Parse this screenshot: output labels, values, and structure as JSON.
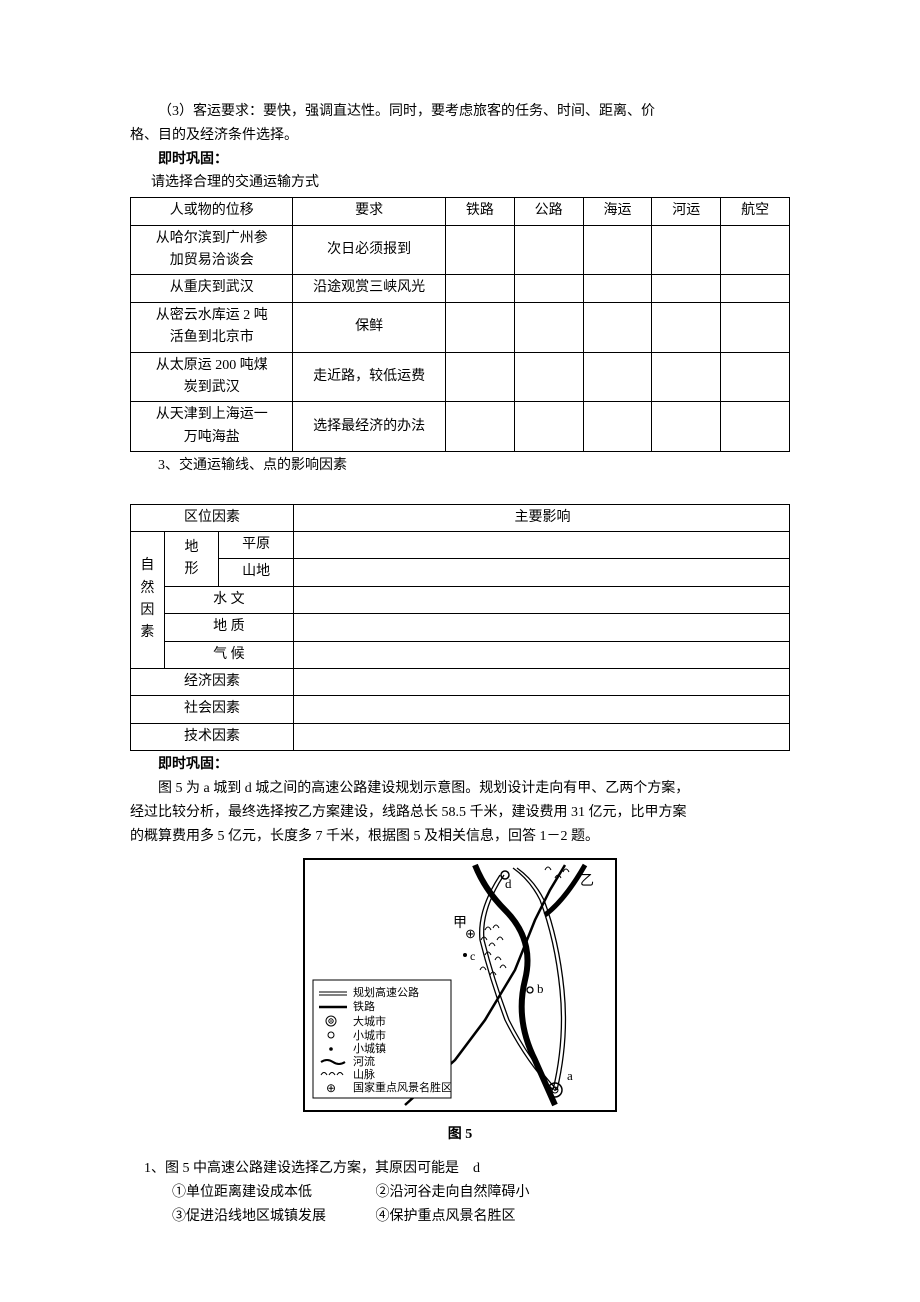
{
  "intro": {
    "line1": "（3）客运要求：要快，强调直达性。同时，要考虑旅客的任务、时间、距离、价",
    "line2": "格、目的及经济条件选择。",
    "consolidate_label": "即时巩固：",
    "prompt": "请选择合理的交通运输方式"
  },
  "table1": {
    "headers": [
      "人或物的位移",
      "要求",
      "铁路",
      "公路",
      "海运",
      "河运",
      "航空"
    ],
    "rows": [
      {
        "c0a": "从哈尔滨到广州参",
        "c0b": "加贸易洽谈会",
        "c1": "次日必须报到"
      },
      {
        "c0": "从重庆到武汉",
        "c1": "沿途观赏三峡风光"
      },
      {
        "c0a": "从密云水库运 2 吨",
        "c0b": "活鱼到北京市",
        "c1": "保鲜"
      },
      {
        "c0a": "从太原运 200 吨煤",
        "c0b": "炭到武汉",
        "c1": "走近路，较低运费"
      },
      {
        "c0a": "从天津到上海运一",
        "c0b": "万吨海盐",
        "c1": "选择最经济的办法"
      }
    ]
  },
  "section3": "3、交通运输线、点的影响因素",
  "table2": {
    "header_factor": "区位因素",
    "header_effect": "主要影响",
    "natural_label": "自然因素",
    "terrain": "地形",
    "plain": "平原",
    "mountain": "山地",
    "hydrology": "水 文",
    "geology": "地 质",
    "climate": "气 候",
    "econ": "经济因素",
    "social": "社会因素",
    "tech": "技术因素"
  },
  "consolidate2": "即时巩固：",
  "scenario": {
    "l1": "图 5 为 a 城到 d 城之间的高速公路建设规划示意图。规划设计走向有甲、乙两个方案，",
    "l2": "经过比较分析，最终选择按乙方案建设，线路总长 58.5 千米，建设费用 31 亿元，比甲方案",
    "l3": "的概算费用多 5 亿元，长度多 7 千米，根据图 5 及相关信息，回答 1－2 题。"
  },
  "figure": {
    "caption": "图 5",
    "legend": {
      "l1": "规划高速公路",
      "l2": "铁路",
      "l3": "大城市",
      "l4": "小城市",
      "l5": "小城镇",
      "l6": "河流",
      "l7": "山脉",
      "l8": "国家重点风景名胜区"
    },
    "labels": {
      "jia": "甲",
      "yi": "乙",
      "a": "a",
      "b": "b",
      "c": "c",
      "d": "d",
      "scenic": "⊕"
    }
  },
  "q1": {
    "stem": "1、图 5 中高速公路建设选择乙方案，其原因可能是",
    "answer": "d",
    "o1": "①单位距离建设成本低",
    "o2": "②沿河谷走向自然障碍小",
    "o3": "③促进沿线地区城镇发展",
    "o4": "④保护重点风景名胜区"
  }
}
